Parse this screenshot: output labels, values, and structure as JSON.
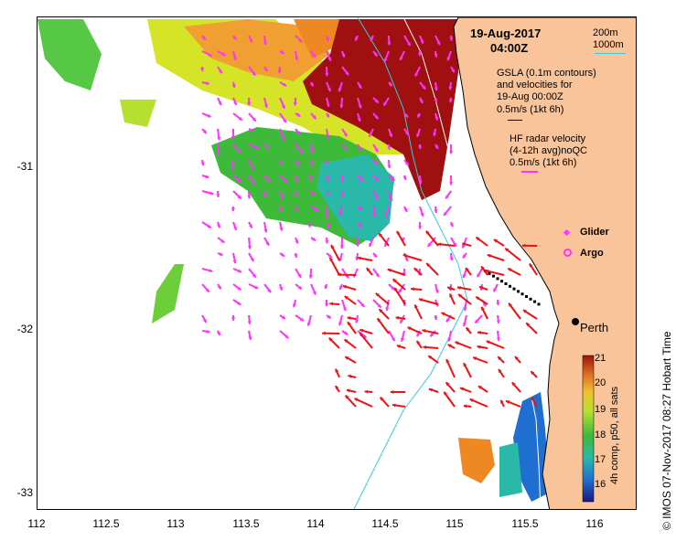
{
  "header": {
    "date": "19-Aug-2017",
    "time": "04:00Z"
  },
  "legend": {
    "depth_200": "200m",
    "depth_1000": "1000m",
    "gsla_line1": "GSLA (0.1m contours)",
    "gsla_line2": "and velocities for",
    "gsla_line3": "19-Aug 00:00Z",
    "gsla_scale": "0.5m/s (1kt 6h)",
    "hf_line1": "HF radar velocity",
    "hf_line2": "(4-12h avg)noQC",
    "hf_scale": "0.5m/s (1kt 6h)",
    "glider": "Glider",
    "argo": "Argo",
    "city": "Perth"
  },
  "colorbar": {
    "label": "4h comp, p50, all sats",
    "ticks": [
      "21",
      "20",
      "19",
      "18",
      "17",
      "16"
    ],
    "min": 15.5,
    "max": 21
  },
  "axes": {
    "x_ticks": [
      "112",
      "112.5",
      "113",
      "113.5",
      "114",
      "114.5",
      "115",
      "115.5",
      "116"
    ],
    "y_ticks": [
      "-31",
      "-32",
      "-33"
    ],
    "xlim": [
      112,
      116.3
    ],
    "ylim": [
      -33.1,
      -30.1
    ]
  },
  "credit": "© IMOS 07-Nov-2017 08:27 Hobart Time",
  "colors": {
    "land": "#f9c49a",
    "gsla_vectors": "#ff33ff",
    "hf_vectors": "#ee1111",
    "isobath_200": "#ffffff",
    "isobath_1000": "#33ccdd",
    "glider": "#ff33ff"
  }
}
